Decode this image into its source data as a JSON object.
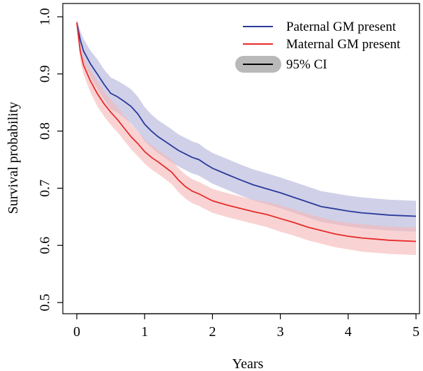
{
  "chart_data": {
    "type": "line",
    "xlabel": "Years",
    "ylabel": "Survival probability",
    "xlim": [
      0,
      5
    ],
    "ylim": [
      0.5,
      1.0
    ],
    "xticks": [
      "0",
      "1",
      "2",
      "3",
      "4",
      "5"
    ],
    "yticks": [
      "0.5",
      "0.6",
      "0.7",
      "0.8",
      "0.9",
      "1.0"
    ],
    "grid": false,
    "legend_position": "top-right",
    "series": [
      {
        "name": "Paternal GM present",
        "color": "#2a3a9a",
        "ci_color": "#b3b3da",
        "x": [
          0,
          0.05,
          0.1,
          0.2,
          0.3,
          0.4,
          0.5,
          0.6,
          0.7,
          0.8,
          0.9,
          1.0,
          1.1,
          1.2,
          1.3,
          1.4,
          1.5,
          1.6,
          1.7,
          1.8,
          1.9,
          2.0,
          2.2,
          2.4,
          2.6,
          2.8,
          3.0,
          3.2,
          3.4,
          3.6,
          3.8,
          4.0,
          4.2,
          4.4,
          4.6,
          4.8,
          5.0
        ],
        "y": [
          0.99,
          0.96,
          0.94,
          0.918,
          0.9,
          0.882,
          0.866,
          0.86,
          0.852,
          0.843,
          0.83,
          0.812,
          0.8,
          0.79,
          0.782,
          0.774,
          0.766,
          0.76,
          0.754,
          0.75,
          0.742,
          0.735,
          0.725,
          0.715,
          0.706,
          0.699,
          0.692,
          0.684,
          0.676,
          0.668,
          0.664,
          0.66,
          0.657,
          0.655,
          0.653,
          0.652,
          0.651
        ],
        "ci_lower": [
          0.985,
          0.944,
          0.919,
          0.895,
          0.874,
          0.856,
          0.838,
          0.832,
          0.823,
          0.813,
          0.8,
          0.782,
          0.771,
          0.761,
          0.753,
          0.745,
          0.738,
          0.732,
          0.726,
          0.722,
          0.715,
          0.708,
          0.698,
          0.688,
          0.679,
          0.672,
          0.665,
          0.657,
          0.649,
          0.641,
          0.637,
          0.633,
          0.63,
          0.628,
          0.626,
          0.625,
          0.624
        ],
        "ci_upper": [
          0.995,
          0.976,
          0.961,
          0.941,
          0.926,
          0.908,
          0.894,
          0.888,
          0.881,
          0.873,
          0.86,
          0.842,
          0.829,
          0.819,
          0.811,
          0.803,
          0.794,
          0.788,
          0.782,
          0.778,
          0.769,
          0.762,
          0.752,
          0.742,
          0.733,
          0.726,
          0.719,
          0.711,
          0.703,
          0.695,
          0.691,
          0.687,
          0.684,
          0.682,
          0.68,
          0.679,
          0.678
        ]
      },
      {
        "name": "Maternal GM present",
        "color": "#e82a2a",
        "ci_color": "#f6b8b8",
        "x": [
          0,
          0.05,
          0.1,
          0.2,
          0.3,
          0.4,
          0.5,
          0.6,
          0.7,
          0.8,
          0.9,
          1.0,
          1.1,
          1.2,
          1.3,
          1.4,
          1.5,
          1.6,
          1.7,
          1.8,
          1.9,
          2.0,
          2.2,
          2.4,
          2.6,
          2.8,
          3.0,
          3.2,
          3.4,
          3.6,
          3.8,
          4.0,
          4.2,
          4.4,
          4.6,
          4.8,
          5.0
        ],
        "y": [
          0.99,
          0.94,
          0.915,
          0.888,
          0.866,
          0.848,
          0.833,
          0.82,
          0.805,
          0.79,
          0.778,
          0.764,
          0.754,
          0.746,
          0.737,
          0.728,
          0.714,
          0.703,
          0.695,
          0.69,
          0.684,
          0.678,
          0.671,
          0.665,
          0.659,
          0.654,
          0.647,
          0.64,
          0.632,
          0.626,
          0.62,
          0.616,
          0.613,
          0.611,
          0.609,
          0.608,
          0.607
        ],
        "ci_lower": [
          0.985,
          0.924,
          0.899,
          0.868,
          0.844,
          0.826,
          0.811,
          0.798,
          0.783,
          0.768,
          0.756,
          0.743,
          0.733,
          0.725,
          0.716,
          0.707,
          0.693,
          0.682,
          0.674,
          0.669,
          0.663,
          0.657,
          0.65,
          0.644,
          0.638,
          0.632,
          0.624,
          0.617,
          0.609,
          0.603,
          0.597,
          0.593,
          0.589,
          0.587,
          0.585,
          0.584,
          0.583
        ],
        "ci_upper": [
          0.995,
          0.956,
          0.931,
          0.908,
          0.888,
          0.87,
          0.855,
          0.842,
          0.827,
          0.812,
          0.8,
          0.785,
          0.775,
          0.767,
          0.758,
          0.749,
          0.735,
          0.724,
          0.716,
          0.711,
          0.705,
          0.699,
          0.692,
          0.686,
          0.68,
          0.676,
          0.67,
          0.663,
          0.655,
          0.649,
          0.643,
          0.639,
          0.637,
          0.635,
          0.633,
          0.632,
          0.631
        ]
      }
    ],
    "legend": [
      {
        "label": "Paternal GM present",
        "kind": "line",
        "color": "#2a3a9a"
      },
      {
        "label": "Maternal GM present",
        "kind": "line",
        "color": "#e82a2a"
      },
      {
        "label": "95% CI",
        "kind": "band",
        "color": "#000000",
        "band_color": "#b9b9b9"
      }
    ]
  }
}
